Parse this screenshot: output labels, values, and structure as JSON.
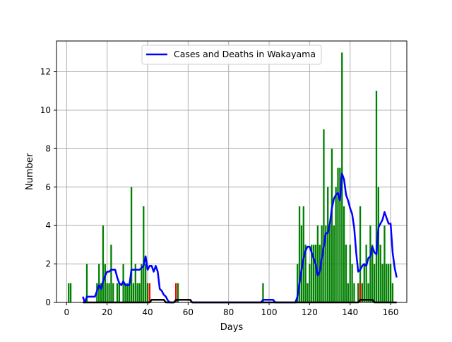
{
  "chart_data": {
    "type": "bar",
    "xlabel": "Days",
    "ylabel": "Number",
    "xlim": [
      -5,
      168
    ],
    "ylim": [
      0,
      13.6
    ],
    "xticks": [
      0,
      20,
      40,
      60,
      80,
      100,
      120,
      140,
      160
    ],
    "yticks": [
      0,
      2,
      4,
      6,
      8,
      10,
      12
    ],
    "grid": true,
    "legend": {
      "label": "Cases and Deaths in Wakayama",
      "placement": "top-center"
    },
    "series": [
      {
        "kind": "bar",
        "color": "#008000",
        "points": [
          [
            1,
            1
          ],
          [
            2,
            1
          ],
          [
            10,
            2
          ],
          [
            15,
            1
          ],
          [
            16,
            2
          ],
          [
            17,
            1
          ],
          [
            18,
            4
          ],
          [
            19,
            2
          ],
          [
            20,
            1
          ],
          [
            21,
            1
          ],
          [
            22,
            3
          ],
          [
            23,
            1
          ],
          [
            25,
            1
          ],
          [
            26,
            1
          ],
          [
            28,
            2
          ],
          [
            29,
            1
          ],
          [
            30,
            1
          ],
          [
            31,
            1
          ],
          [
            32,
            6
          ],
          [
            33,
            1
          ],
          [
            34,
            2
          ],
          [
            35,
            1
          ],
          [
            36,
            1
          ],
          [
            37,
            2
          ],
          [
            38,
            5
          ],
          [
            39,
            2
          ],
          [
            40,
            1
          ],
          [
            55,
            1
          ],
          [
            97,
            1
          ],
          [
            114,
            2
          ],
          [
            115,
            5
          ],
          [
            116,
            4
          ],
          [
            117,
            5
          ],
          [
            118,
            3
          ],
          [
            119,
            1
          ],
          [
            120,
            2
          ],
          [
            121,
            3
          ],
          [
            122,
            3
          ],
          [
            123,
            3
          ],
          [
            124,
            4
          ],
          [
            125,
            3
          ],
          [
            126,
            4
          ],
          [
            127,
            9
          ],
          [
            128,
            4
          ],
          [
            129,
            6
          ],
          [
            130,
            4
          ],
          [
            131,
            8
          ],
          [
            132,
            4
          ],
          [
            133,
            6
          ],
          [
            134,
            7
          ],
          [
            135,
            7
          ],
          [
            136,
            13
          ],
          [
            137,
            5
          ],
          [
            138,
            3
          ],
          [
            139,
            1
          ],
          [
            140,
            3
          ],
          [
            141,
            2
          ],
          [
            142,
            1
          ],
          [
            144,
            1
          ],
          [
            145,
            5
          ],
          [
            146,
            1
          ],
          [
            147,
            2
          ],
          [
            148,
            3
          ],
          [
            149,
            1
          ],
          [
            150,
            4
          ],
          [
            151,
            3
          ],
          [
            152,
            2
          ],
          [
            153,
            11
          ],
          [
            154,
            6
          ],
          [
            155,
            3
          ],
          [
            156,
            2
          ],
          [
            157,
            4
          ],
          [
            158,
            2
          ],
          [
            159,
            2
          ],
          [
            160,
            2
          ],
          [
            161,
            1
          ]
        ]
      },
      {
        "kind": "bar",
        "color": "#ff0000",
        "points": [
          [
            41,
            1
          ],
          [
            54,
            1
          ],
          [
            145,
            1
          ]
        ]
      },
      {
        "kind": "line",
        "name": "Cases and Deaths in Wakayama",
        "color": "#0000ff",
        "points": [
          [
            8,
            0.3
          ],
          [
            9,
            0
          ],
          [
            10,
            0.3
          ],
          [
            11,
            0.3
          ],
          [
            12,
            0.3
          ],
          [
            13,
            0.3
          ],
          [
            14,
            0.3
          ],
          [
            15,
            0.6
          ],
          [
            16,
            0.9
          ],
          [
            17,
            0.7
          ],
          [
            18,
            1.1
          ],
          [
            19,
            1.4
          ],
          [
            20,
            1.6
          ],
          [
            21,
            1.6
          ],
          [
            22,
            1.7
          ],
          [
            23,
            1.7
          ],
          [
            24,
            1.7
          ],
          [
            25,
            1.3
          ],
          [
            26,
            1
          ],
          [
            27,
            0.9
          ],
          [
            28,
            1.1
          ],
          [
            29,
            0.9
          ],
          [
            30,
            0.9
          ],
          [
            31,
            0.9
          ],
          [
            32,
            1.7
          ],
          [
            33,
            1.7
          ],
          [
            34,
            1.7
          ],
          [
            35,
            1.7
          ],
          [
            36,
            1.7
          ],
          [
            37,
            1.8
          ],
          [
            38,
            1.9
          ],
          [
            39,
            2.4
          ],
          [
            40,
            1.7
          ],
          [
            41,
            1.9
          ],
          [
            42,
            1.9
          ],
          [
            43,
            1.6
          ],
          [
            44,
            1.9
          ],
          [
            45,
            1.6
          ],
          [
            46,
            0.7
          ],
          [
            47,
            0.6
          ],
          [
            48,
            0.4
          ],
          [
            49,
            0.3
          ],
          [
            50,
            0.1
          ],
          [
            51,
            0
          ],
          [
            52,
            0
          ],
          [
            53,
            0
          ],
          [
            54,
            0.1
          ],
          [
            55,
            0.14
          ],
          [
            56,
            0.14
          ],
          [
            57,
            0.14
          ],
          [
            58,
            0.14
          ],
          [
            59,
            0.14
          ],
          [
            60,
            0.14
          ],
          [
            61,
            0.14
          ],
          [
            62,
            0
          ],
          [
            96,
            0
          ],
          [
            97,
            0.14
          ],
          [
            98,
            0.14
          ],
          [
            99,
            0.14
          ],
          [
            100,
            0.14
          ],
          [
            101,
            0.14
          ],
          [
            102,
            0.14
          ],
          [
            103,
            0
          ],
          [
            113,
            0
          ],
          [
            114,
            0.3
          ],
          [
            115,
            1
          ],
          [
            116,
            1.7
          ],
          [
            117,
            2.3
          ],
          [
            118,
            2.7
          ],
          [
            119,
            2.9
          ],
          [
            120,
            2.9
          ],
          [
            121,
            2.6
          ],
          [
            122,
            2.3
          ],
          [
            123,
            2
          ],
          [
            124,
            1.4
          ],
          [
            125,
            1.6
          ],
          [
            126,
            2.3
          ],
          [
            127,
            2.9
          ],
          [
            128,
            3.6
          ],
          [
            129,
            3.6
          ],
          [
            130,
            4.1
          ],
          [
            131,
            4.9
          ],
          [
            132,
            5.4
          ],
          [
            133,
            5.6
          ],
          [
            134,
            5.7
          ],
          [
            135,
            5.3
          ],
          [
            136,
            6.7
          ],
          [
            137,
            6.4
          ],
          [
            138,
            5.6
          ],
          [
            139,
            5.3
          ],
          [
            140,
            4.9
          ],
          [
            141,
            4.6
          ],
          [
            142,
            3.9
          ],
          [
            143,
            2.6
          ],
          [
            144,
            1.6
          ],
          [
            145,
            1.7
          ],
          [
            146,
            1.9
          ],
          [
            147,
            2
          ],
          [
            148,
            1.9
          ],
          [
            149,
            2.3
          ],
          [
            150,
            2.4
          ],
          [
            151,
            2.9
          ],
          [
            152,
            2.6
          ],
          [
            153,
            2.5
          ],
          [
            154,
            3.9
          ],
          [
            155,
            4.1
          ],
          [
            156,
            4.3
          ],
          [
            157,
            4.7
          ],
          [
            158,
            4.4
          ],
          [
            159,
            4.1
          ],
          [
            160,
            4.1
          ],
          [
            161,
            2.6
          ],
          [
            162,
            1.8
          ],
          [
            163,
            1.3
          ]
        ]
      },
      {
        "kind": "line",
        "color": "#000000",
        "points": [
          [
            8,
            0
          ],
          [
            40,
            0
          ],
          [
            41,
            0
          ],
          [
            42,
            0.14
          ],
          [
            43,
            0.14
          ],
          [
            44,
            0.14
          ],
          [
            45,
            0.14
          ],
          [
            46,
            0.14
          ],
          [
            47,
            0.14
          ],
          [
            48,
            0.14
          ],
          [
            49,
            0
          ],
          [
            52,
            0
          ],
          [
            53,
            0
          ],
          [
            54,
            0.14
          ],
          [
            55,
            0.14
          ],
          [
            56,
            0.14
          ],
          [
            57,
            0.14
          ],
          [
            58,
            0.14
          ],
          [
            59,
            0.14
          ],
          [
            60,
            0.14
          ],
          [
            61,
            0.14
          ],
          [
            62,
            0
          ],
          [
            100,
            0
          ],
          [
            143,
            0
          ],
          [
            144,
            0
          ],
          [
            145,
            0.14
          ],
          [
            146,
            0.14
          ],
          [
            147,
            0.14
          ],
          [
            148,
            0.14
          ],
          [
            149,
            0.14
          ],
          [
            150,
            0.14
          ],
          [
            151,
            0.14
          ],
          [
            152,
            0
          ],
          [
            163,
            0
          ]
        ]
      }
    ]
  }
}
